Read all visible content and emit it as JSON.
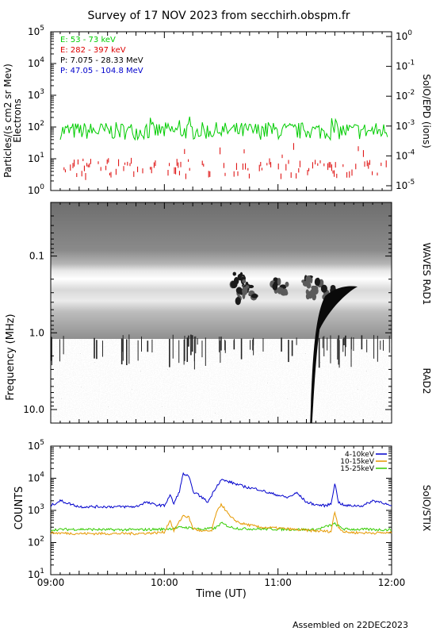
{
  "header": {
    "title": "Survey of 17 NOV 2023 from secchirh.obspm.fr",
    "footer": "Assembled on 22DEC2023"
  },
  "chart_data": [
    {
      "type": "line",
      "id": "epd",
      "ylabel_left": "Particles/(s cm2 sr Mev)",
      "ylabel_left2": "Electrons",
      "ylabel_right": "SolO/EPD (ions)",
      "y_scale": "log",
      "ylim": [
        1,
        100000
      ],
      "y_ticks": [
        {
          "base": "10",
          "exp": "0",
          "v": 1
        },
        {
          "base": "10",
          "exp": "1",
          "v": 10
        },
        {
          "base": "10",
          "exp": "2",
          "v": 100
        },
        {
          "base": "10",
          "exp": "3",
          "v": 1000
        },
        {
          "base": "10",
          "exp": "4",
          "v": 10000
        },
        {
          "base": "10",
          "exp": "5",
          "v": 100000
        }
      ],
      "y2_ticks": [
        {
          "base": "10",
          "exp": "-5"
        },
        {
          "base": "10",
          "exp": "-4"
        },
        {
          "base": "10",
          "exp": "-3"
        },
        {
          "base": "10",
          "exp": "-2"
        },
        {
          "base": "10",
          "exp": "-1"
        },
        {
          "base": "10",
          "exp": "0"
        }
      ],
      "legend_position": "top-left",
      "series": [
        {
          "name": "E: 53 - 73 keV",
          "color": "#00cc00",
          "typical": 75
        },
        {
          "name": "E: 282 - 397 keV",
          "color": "#dd0000",
          "typical": 6
        },
        {
          "name": "P: 7.075 - 28.33 MeV",
          "color": "#000000",
          "typical": null
        },
        {
          "name": "P: 47.05 - 104.8 MeV",
          "color": "#0000cc",
          "typical": null
        }
      ]
    },
    {
      "type": "heatmap",
      "id": "waves",
      "ylabel": "Frequency (MHz)",
      "right_label_top": "WAVES RAD1",
      "right_label_bottom": "RAD2",
      "y_scale": "log-inverted",
      "ylim": [
        0.02,
        15
      ],
      "y_ticks": [
        "0.1",
        "1.0",
        "10.0"
      ],
      "y_tick_values": [
        0.1,
        1.0,
        10.0
      ],
      "burst_start_time": "11:17",
      "burst_end_time": "11:42"
    },
    {
      "type": "line",
      "id": "stix",
      "ylabel": "COUNTS",
      "ylabel_right": "SolO/STIX",
      "y_scale": "log",
      "ylim": [
        10,
        100000
      ],
      "y_ticks": [
        {
          "base": "10",
          "exp": "1",
          "v": 10
        },
        {
          "base": "10",
          "exp": "2",
          "v": 100
        },
        {
          "base": "10",
          "exp": "3",
          "v": 1000
        },
        {
          "base": "10",
          "exp": "4",
          "v": 10000
        },
        {
          "base": "10",
          "exp": "5",
          "v": 100000
        }
      ],
      "legend_position": "top-right",
      "xlabel": "Time (UT)",
      "x_ticks": [
        "09:00",
        "10:00",
        "11:00",
        "12:00"
      ],
      "series": [
        {
          "name": "4-10keV",
          "color": "#0000cc",
          "x": [
            "09:00",
            "09:05",
            "09:15",
            "09:30",
            "09:45",
            "09:50",
            "09:55",
            "10:00",
            "10:03",
            "10:05",
            "10:08",
            "10:10",
            "10:13",
            "10:15",
            "10:20",
            "10:23",
            "10:27",
            "10:30",
            "10:35",
            "10:40",
            "10:45",
            "10:50",
            "10:55",
            "11:00",
            "11:05",
            "11:10",
            "11:15",
            "11:20",
            "11:25",
            "11:28",
            "11:30",
            "11:32",
            "11:35",
            "11:40",
            "11:45",
            "11:50",
            "11:55",
            "12:00"
          ],
          "values": [
            1400,
            2000,
            1300,
            1300,
            1300,
            1800,
            1500,
            1400,
            3000,
            1600,
            4000,
            14000,
            11000,
            4000,
            2500,
            1800,
            5000,
            9000,
            7500,
            6000,
            5000,
            4500,
            3500,
            3000,
            2500,
            3500,
            1800,
            1500,
            1400,
            1600,
            7000,
            1800,
            1400,
            1400,
            1400,
            2000,
            1800,
            1300
          ]
        },
        {
          "name": "10-15keV",
          "color": "#e69900",
          "x": [
            "09:00",
            "09:15",
            "09:30",
            "09:45",
            "09:55",
            "10:00",
            "10:03",
            "10:05",
            "10:10",
            "10:13",
            "10:15",
            "10:20",
            "10:25",
            "10:27",
            "10:30",
            "10:35",
            "10:40",
            "10:45",
            "10:50",
            "11:00",
            "11:10",
            "11:20",
            "11:28",
            "11:30",
            "11:32",
            "11:35",
            "11:45",
            "12:00"
          ],
          "values": [
            200,
            190,
            190,
            190,
            200,
            210,
            500,
            230,
            700,
            600,
            280,
            220,
            230,
            700,
            1600,
            600,
            400,
            350,
            300,
            280,
            250,
            230,
            220,
            900,
            300,
            210,
            200,
            200
          ]
        },
        {
          "name": "15-25keV",
          "color": "#33cc00",
          "x": [
            "09:00",
            "09:15",
            "09:30",
            "09:45",
            "10:00",
            "10:10",
            "10:20",
            "10:27",
            "10:30",
            "10:35",
            "10:40",
            "11:00",
            "11:20",
            "11:30",
            "11:35",
            "12:00"
          ],
          "values": [
            250,
            260,
            250,
            250,
            260,
            300,
            260,
            280,
            400,
            300,
            270,
            260,
            250,
            380,
            260,
            250
          ]
        }
      ]
    }
  ]
}
